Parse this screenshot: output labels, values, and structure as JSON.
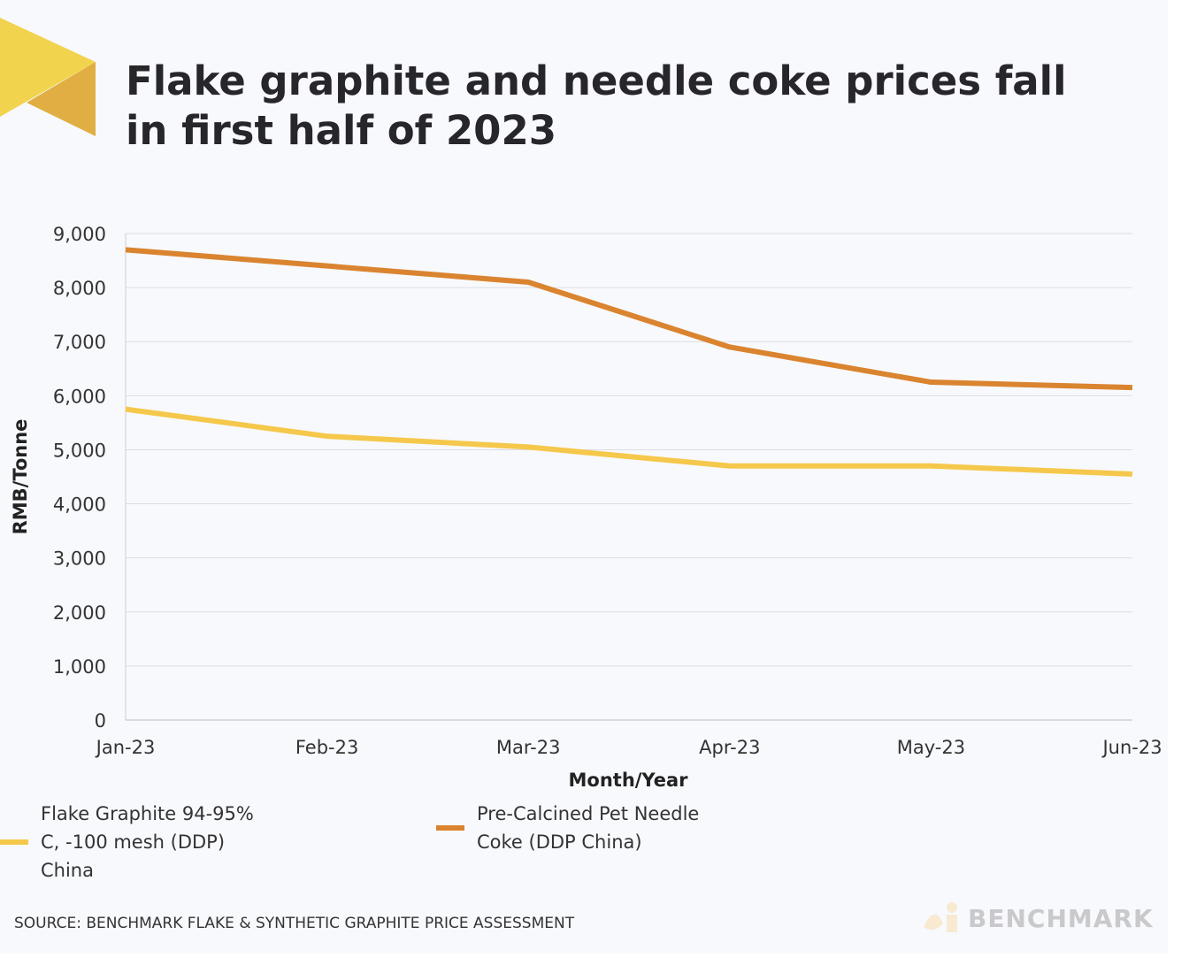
{
  "title": "Flake graphite and needle coke prices fall in first half of 2023",
  "source": "SOURCE: BENCHMARK FLAKE & SYNTHETIC GRAPHITE PRICE ASSESSMENT",
  "brand": "BENCHMARK",
  "colors": {
    "flake": "#f5c84c",
    "needle": "#da8430",
    "logo_yellow": "#f2d34e",
    "logo_orange": "#e0ae42"
  },
  "chart_data": {
    "type": "line",
    "title": "Flake graphite and needle coke prices fall in first half of 2023",
    "xlabel": "Month/Year",
    "ylabel": "RMB/Tonne",
    "categories": [
      "Jan-23",
      "Feb-23",
      "Mar-23",
      "Apr-23",
      "May-23",
      "Jun-23"
    ],
    "ylim": [
      0,
      9000
    ],
    "yticks": [
      "0",
      "1,000",
      "2,000",
      "3,000",
      "4,000",
      "5,000",
      "6,000",
      "7,000",
      "8,000",
      "9,000"
    ],
    "grid": true,
    "legend": "bottom",
    "series": [
      {
        "name": "Flake Graphite 94-95% C, -100 mesh (DDP) China",
        "color": "#f5c84c",
        "values": [
          5750,
          5250,
          5050,
          4700,
          4700,
          4550
        ]
      },
      {
        "name": "Pre-Calcined Pet Needle Coke (DDP China)",
        "color": "#da8430",
        "values": [
          8700,
          8400,
          8100,
          6900,
          6250,
          6150
        ]
      }
    ]
  }
}
